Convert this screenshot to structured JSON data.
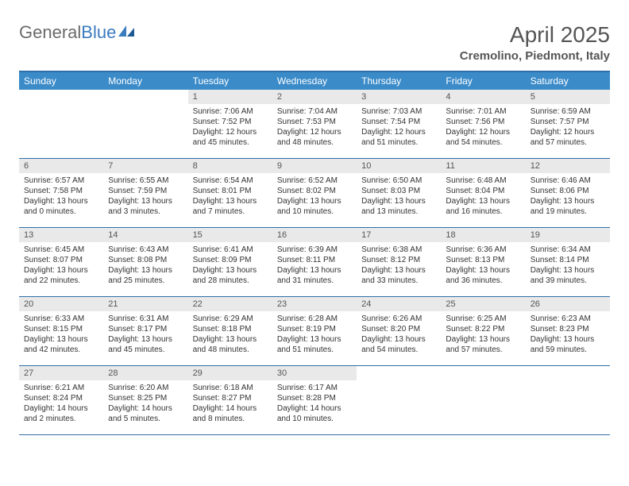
{
  "brand": {
    "part1": "General",
    "part2": "Blue"
  },
  "title": "April 2025",
  "location": "Cremolino, Piedmont, Italy",
  "colors": {
    "header_bar": "#3b8bc9",
    "rule": "#2f6fa8",
    "daynum_bg": "#e9e9e9",
    "text": "#333333",
    "title_text": "#555555",
    "logo_gray": "#6b6b6b",
    "logo_blue": "#3b7bbf",
    "white": "#ffffff"
  },
  "days_of_week": [
    "Sunday",
    "Monday",
    "Tuesday",
    "Wednesday",
    "Thursday",
    "Friday",
    "Saturday"
  ],
  "weeks": [
    [
      {
        "n": "",
        "sunrise": "",
        "sunset": "",
        "daylight": ""
      },
      {
        "n": "",
        "sunrise": "",
        "sunset": "",
        "daylight": ""
      },
      {
        "n": "1",
        "sunrise": "Sunrise: 7:06 AM",
        "sunset": "Sunset: 7:52 PM",
        "daylight": "Daylight: 12 hours and 45 minutes."
      },
      {
        "n": "2",
        "sunrise": "Sunrise: 7:04 AM",
        "sunset": "Sunset: 7:53 PM",
        "daylight": "Daylight: 12 hours and 48 minutes."
      },
      {
        "n": "3",
        "sunrise": "Sunrise: 7:03 AM",
        "sunset": "Sunset: 7:54 PM",
        "daylight": "Daylight: 12 hours and 51 minutes."
      },
      {
        "n": "4",
        "sunrise": "Sunrise: 7:01 AM",
        "sunset": "Sunset: 7:56 PM",
        "daylight": "Daylight: 12 hours and 54 minutes."
      },
      {
        "n": "5",
        "sunrise": "Sunrise: 6:59 AM",
        "sunset": "Sunset: 7:57 PM",
        "daylight": "Daylight: 12 hours and 57 minutes."
      }
    ],
    [
      {
        "n": "6",
        "sunrise": "Sunrise: 6:57 AM",
        "sunset": "Sunset: 7:58 PM",
        "daylight": "Daylight: 13 hours and 0 minutes."
      },
      {
        "n": "7",
        "sunrise": "Sunrise: 6:55 AM",
        "sunset": "Sunset: 7:59 PM",
        "daylight": "Daylight: 13 hours and 3 minutes."
      },
      {
        "n": "8",
        "sunrise": "Sunrise: 6:54 AM",
        "sunset": "Sunset: 8:01 PM",
        "daylight": "Daylight: 13 hours and 7 minutes."
      },
      {
        "n": "9",
        "sunrise": "Sunrise: 6:52 AM",
        "sunset": "Sunset: 8:02 PM",
        "daylight": "Daylight: 13 hours and 10 minutes."
      },
      {
        "n": "10",
        "sunrise": "Sunrise: 6:50 AM",
        "sunset": "Sunset: 8:03 PM",
        "daylight": "Daylight: 13 hours and 13 minutes."
      },
      {
        "n": "11",
        "sunrise": "Sunrise: 6:48 AM",
        "sunset": "Sunset: 8:04 PM",
        "daylight": "Daylight: 13 hours and 16 minutes."
      },
      {
        "n": "12",
        "sunrise": "Sunrise: 6:46 AM",
        "sunset": "Sunset: 8:06 PM",
        "daylight": "Daylight: 13 hours and 19 minutes."
      }
    ],
    [
      {
        "n": "13",
        "sunrise": "Sunrise: 6:45 AM",
        "sunset": "Sunset: 8:07 PM",
        "daylight": "Daylight: 13 hours and 22 minutes."
      },
      {
        "n": "14",
        "sunrise": "Sunrise: 6:43 AM",
        "sunset": "Sunset: 8:08 PM",
        "daylight": "Daylight: 13 hours and 25 minutes."
      },
      {
        "n": "15",
        "sunrise": "Sunrise: 6:41 AM",
        "sunset": "Sunset: 8:09 PM",
        "daylight": "Daylight: 13 hours and 28 minutes."
      },
      {
        "n": "16",
        "sunrise": "Sunrise: 6:39 AM",
        "sunset": "Sunset: 8:11 PM",
        "daylight": "Daylight: 13 hours and 31 minutes."
      },
      {
        "n": "17",
        "sunrise": "Sunrise: 6:38 AM",
        "sunset": "Sunset: 8:12 PM",
        "daylight": "Daylight: 13 hours and 33 minutes."
      },
      {
        "n": "18",
        "sunrise": "Sunrise: 6:36 AM",
        "sunset": "Sunset: 8:13 PM",
        "daylight": "Daylight: 13 hours and 36 minutes."
      },
      {
        "n": "19",
        "sunrise": "Sunrise: 6:34 AM",
        "sunset": "Sunset: 8:14 PM",
        "daylight": "Daylight: 13 hours and 39 minutes."
      }
    ],
    [
      {
        "n": "20",
        "sunrise": "Sunrise: 6:33 AM",
        "sunset": "Sunset: 8:15 PM",
        "daylight": "Daylight: 13 hours and 42 minutes."
      },
      {
        "n": "21",
        "sunrise": "Sunrise: 6:31 AM",
        "sunset": "Sunset: 8:17 PM",
        "daylight": "Daylight: 13 hours and 45 minutes."
      },
      {
        "n": "22",
        "sunrise": "Sunrise: 6:29 AM",
        "sunset": "Sunset: 8:18 PM",
        "daylight": "Daylight: 13 hours and 48 minutes."
      },
      {
        "n": "23",
        "sunrise": "Sunrise: 6:28 AM",
        "sunset": "Sunset: 8:19 PM",
        "daylight": "Daylight: 13 hours and 51 minutes."
      },
      {
        "n": "24",
        "sunrise": "Sunrise: 6:26 AM",
        "sunset": "Sunset: 8:20 PM",
        "daylight": "Daylight: 13 hours and 54 minutes."
      },
      {
        "n": "25",
        "sunrise": "Sunrise: 6:25 AM",
        "sunset": "Sunset: 8:22 PM",
        "daylight": "Daylight: 13 hours and 57 minutes."
      },
      {
        "n": "26",
        "sunrise": "Sunrise: 6:23 AM",
        "sunset": "Sunset: 8:23 PM",
        "daylight": "Daylight: 13 hours and 59 minutes."
      }
    ],
    [
      {
        "n": "27",
        "sunrise": "Sunrise: 6:21 AM",
        "sunset": "Sunset: 8:24 PM",
        "daylight": "Daylight: 14 hours and 2 minutes."
      },
      {
        "n": "28",
        "sunrise": "Sunrise: 6:20 AM",
        "sunset": "Sunset: 8:25 PM",
        "daylight": "Daylight: 14 hours and 5 minutes."
      },
      {
        "n": "29",
        "sunrise": "Sunrise: 6:18 AM",
        "sunset": "Sunset: 8:27 PM",
        "daylight": "Daylight: 14 hours and 8 minutes."
      },
      {
        "n": "30",
        "sunrise": "Sunrise: 6:17 AM",
        "sunset": "Sunset: 8:28 PM",
        "daylight": "Daylight: 14 hours and 10 minutes."
      },
      {
        "n": "",
        "sunrise": "",
        "sunset": "",
        "daylight": ""
      },
      {
        "n": "",
        "sunrise": "",
        "sunset": "",
        "daylight": ""
      },
      {
        "n": "",
        "sunrise": "",
        "sunset": "",
        "daylight": ""
      }
    ]
  ]
}
